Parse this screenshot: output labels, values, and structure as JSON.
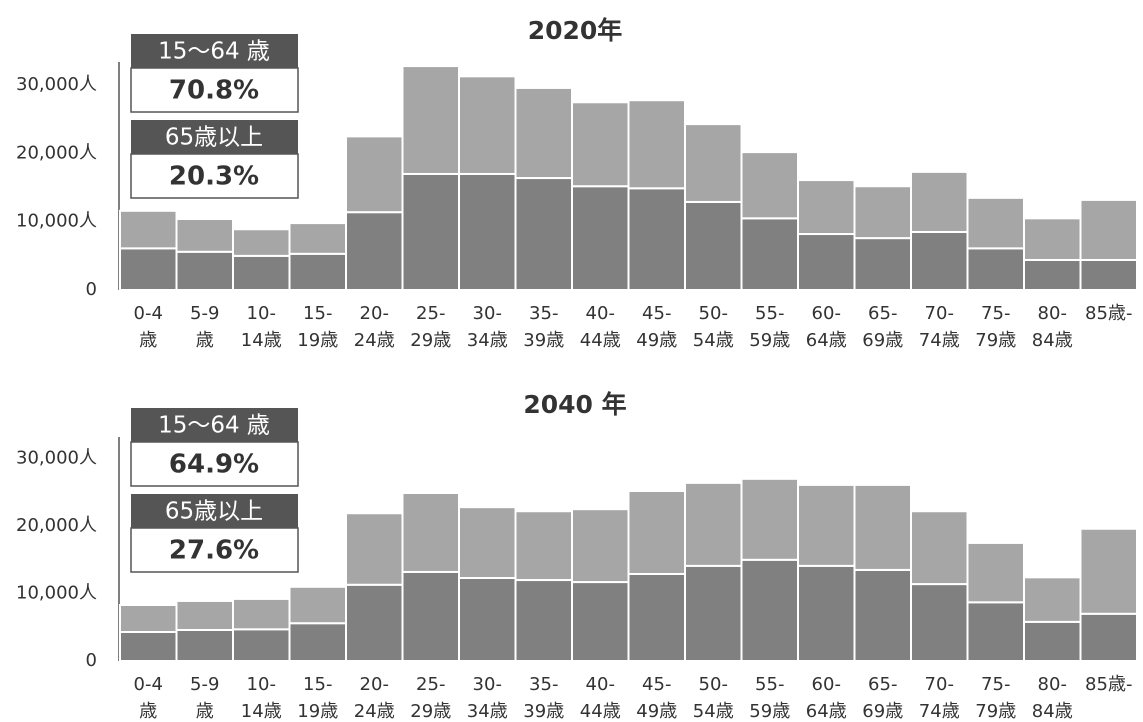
{
  "chart_data": [
    {
      "type": "bar",
      "stacked": true,
      "title": "2020年",
      "categories": [
        [
          "0-4",
          "歳"
        ],
        [
          "5-9",
          "歳"
        ],
        [
          "10-",
          "14歳"
        ],
        [
          "15-",
          "19歳"
        ],
        [
          "20-",
          "24歳"
        ],
        [
          "25-",
          "29歳"
        ],
        [
          "30-",
          "34歳"
        ],
        [
          "35-",
          "39歳"
        ],
        [
          "40-",
          "44歳"
        ],
        [
          "45-",
          "49歳"
        ],
        [
          "50-",
          "54歳"
        ],
        [
          "55-",
          "59歳"
        ],
        [
          "60-",
          "64歳"
        ],
        [
          "65-",
          "69歳"
        ],
        [
          "70-",
          "74歳"
        ],
        [
          "75-",
          "79歳"
        ],
        [
          "80-",
          "84歳"
        ],
        [
          "85歳-"
        ]
      ],
      "series": [
        {
          "color": "#808080",
          "values": [
            6100,
            5600,
            5000,
            5300,
            11400,
            17000,
            17000,
            16400,
            15200,
            14900,
            12900,
            10500,
            8200,
            7600,
            8500,
            6100,
            4400,
            4400
          ]
        },
        {
          "color": "#a6a6a6",
          "values": [
            5500,
            4800,
            3900,
            4500,
            11100,
            15800,
            14300,
            13200,
            12300,
            12900,
            11400,
            9700,
            7900,
            7600,
            8800,
            7400,
            6100,
            8800
          ]
        }
      ],
      "ylim": [
        0,
        33400
      ],
      "yticks": [
        0,
        {
          "value": 10000,
          "label": "10,000人"
        },
        {
          "value": 20000,
          "label": "20,000人"
        },
        {
          "value": 30000,
          "label": "30,000人"
        }
      ],
      "annotations": [
        {
          "label": "15～64 歳",
          "value": "70.8%"
        },
        {
          "label": "65歳以上",
          "value": "20.3%"
        }
      ]
    },
    {
      "type": "bar",
      "stacked": true,
      "title": "2040 年",
      "categories": [
        [
          "0-4",
          "歳"
        ],
        [
          "5-9",
          "歳"
        ],
        [
          "10-",
          "14歳"
        ],
        [
          "15-",
          "19歳"
        ],
        [
          "20-",
          "24歳"
        ],
        [
          "25-",
          "29歳"
        ],
        [
          "30-",
          "34歳"
        ],
        [
          "35-",
          "39歳"
        ],
        [
          "40-",
          "44歳"
        ],
        [
          "45-",
          "49歳"
        ],
        [
          "50-",
          "54歳"
        ],
        [
          "55-",
          "59歳"
        ],
        [
          "60-",
          "64歳"
        ],
        [
          "65-",
          "69歳"
        ],
        [
          "70-",
          "74歳"
        ],
        [
          "75-",
          "79歳"
        ],
        [
          "80-",
          "84歳"
        ],
        [
          "85歳-"
        ]
      ],
      "series": [
        {
          "color": "#808080",
          "values": [
            4300,
            4600,
            4700,
            5600,
            11300,
            13200,
            12300,
            12000,
            11700,
            12900,
            14100,
            15000,
            14100,
            13500,
            11400,
            8700,
            5800,
            7000
          ]
        },
        {
          "color": "#a6a6a6",
          "values": [
            4000,
            4300,
            4500,
            5400,
            10600,
            11700,
            10500,
            10200,
            10800,
            12300,
            12300,
            12000,
            12000,
            12600,
            10800,
            8800,
            6600,
            12600
          ]
        }
      ],
      "ylim": [
        0,
        33200
      ],
      "yticks": [
        0,
        {
          "value": 10000,
          "label": "10,000人"
        },
        {
          "value": 20000,
          "label": "20,000人"
        },
        {
          "value": 30000,
          "label": "30,000人"
        }
      ],
      "annotations": [
        {
          "label": "15～64 歳",
          "value": "64.9%"
        },
        {
          "label": "65歳以上",
          "value": "27.6%"
        }
      ]
    }
  ]
}
